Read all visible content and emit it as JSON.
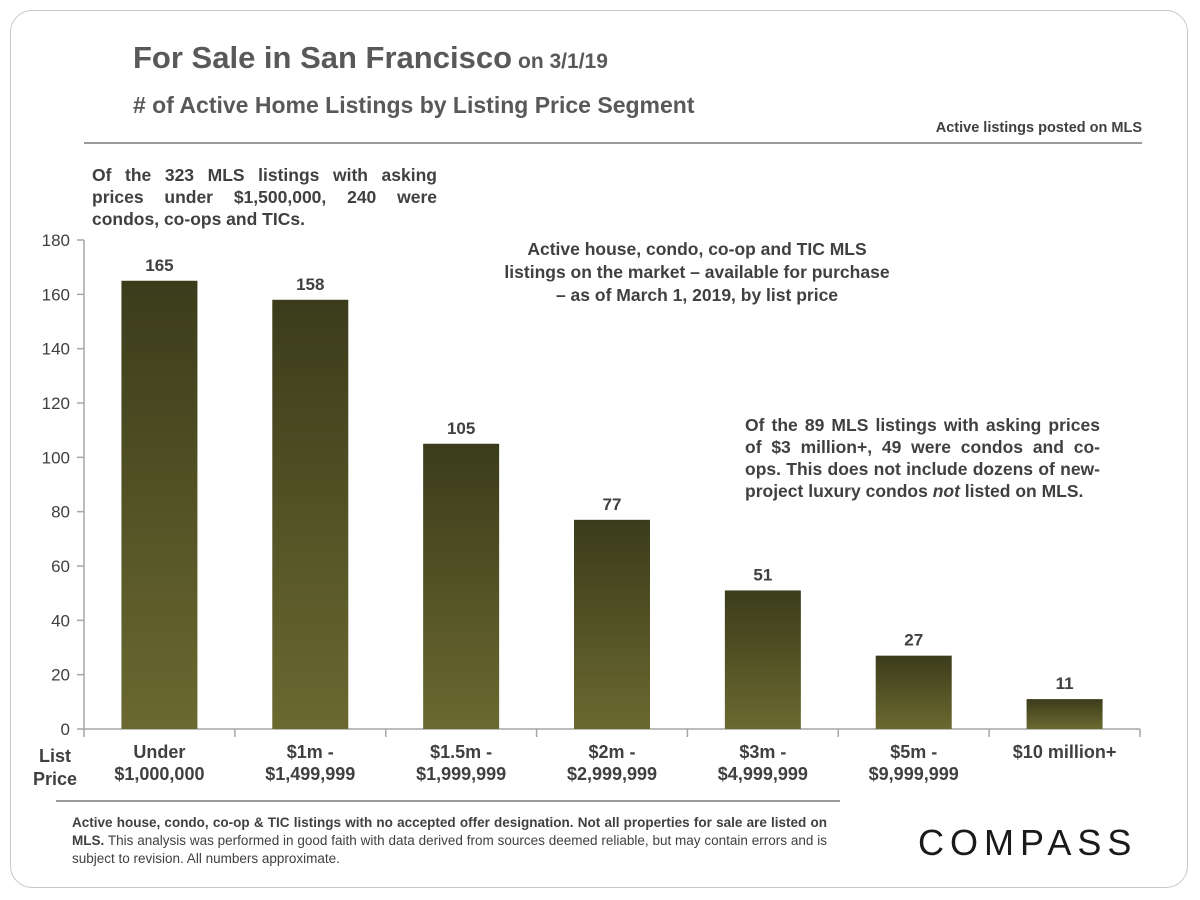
{
  "header": {
    "title": "For Sale in San Francisco",
    "title_date": "on 3/1/19",
    "subtitle": "# of Active Home Listings by Listing Price Segment",
    "source_note": "Active listings posted on MLS"
  },
  "notes": {
    "left": "Of the 323 MLS listings with asking prices under $1,500,000, 240 were condos, co-ops and TICs.",
    "mid_lines": [
      "Active house, condo, co-op and TIC MLS",
      "listings on the market – available for purchase",
      "– as of March 1, 2019, by list price"
    ],
    "right": {
      "before": "Of the 89 MLS listings with asking prices of $3 million+, 49 were condos and co-ops. This does not include dozens of new-project luxury condos ",
      "emphasis": "not",
      "after": " listed on MLS."
    }
  },
  "chart_data": {
    "type": "bar",
    "categories": [
      [
        "Under",
        "$1,000,000"
      ],
      [
        "$1m -",
        "$1,499,999"
      ],
      [
        "$1.5m -",
        "$1,999,999"
      ],
      [
        "$2m -",
        "$2,999,999"
      ],
      [
        "$3m -",
        "$4,999,999"
      ],
      [
        "$5m -",
        "$9,999,999"
      ],
      [
        "$10 million+"
      ]
    ],
    "values": [
      165,
      158,
      105,
      77,
      51,
      27,
      11
    ],
    "xlabel": [
      "List",
      "Price"
    ],
    "ylabel": "",
    "ylim": [
      0,
      180
    ],
    "yticks": [
      0,
      20,
      40,
      60,
      80,
      100,
      120,
      140,
      160,
      180
    ],
    "grid": false,
    "legend": "none",
    "colors": {
      "bar_top": "#3b3c1b",
      "bar_bottom": "#6b6930",
      "axis": "#a6a6a6",
      "text": "#404040"
    }
  },
  "footer": {
    "bold_text": "Active house, condo, co-op & TIC listings with no accepted offer designation. Not all properties for sale are listed on MLS.",
    "regular_text": " This analysis was performed in good faith with data derived from sources deemed reliable, but may contain errors and is subject to revision. All numbers approximate."
  },
  "brand": {
    "logo_text": "COMPASS"
  }
}
